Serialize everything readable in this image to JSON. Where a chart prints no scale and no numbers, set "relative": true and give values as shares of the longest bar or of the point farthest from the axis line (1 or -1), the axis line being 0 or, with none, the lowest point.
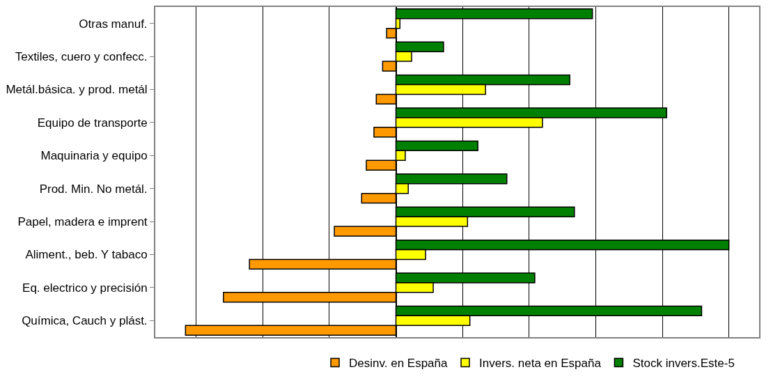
{
  "chart_data": {
    "type": "bar",
    "orientation": "horizontal",
    "relative": true,
    "grid": "x",
    "legend": "bottom",
    "categories": [
      "Otras manuf.",
      "Textiles, cuero y confecc.",
      "Metál.básica. y prod. metál",
      "Equipo de transporte",
      "Maquinaria y equipo",
      "Prod. Min. No metál.",
      "Papel, madera e imprent",
      "Aliment., beb. Y tabaco",
      "Eq. electrico y precisión",
      "Química, Cauch y plást."
    ],
    "series": [
      {
        "name": "Desinv. en España",
        "color": "#ff9900",
        "values": [
          -0.028,
          -0.04,
          -0.059,
          -0.066,
          -0.089,
          -0.103,
          -0.185,
          -0.44,
          -0.518,
          -0.632
        ]
      },
      {
        "name": "Invers. neta en España",
        "color": "#ffff00",
        "values": [
          0.012,
          0.047,
          0.269,
          0.44,
          0.028,
          0.037,
          0.215,
          0.089,
          0.112,
          0.222
        ]
      },
      {
        "name": "Stock invers.Este-5",
        "color": "#008000",
        "values": [
          0.59,
          0.143,
          0.522,
          0.813,
          0.246,
          0.333,
          0.536,
          1,
          0.417,
          0.918
        ]
      }
    ]
  }
}
